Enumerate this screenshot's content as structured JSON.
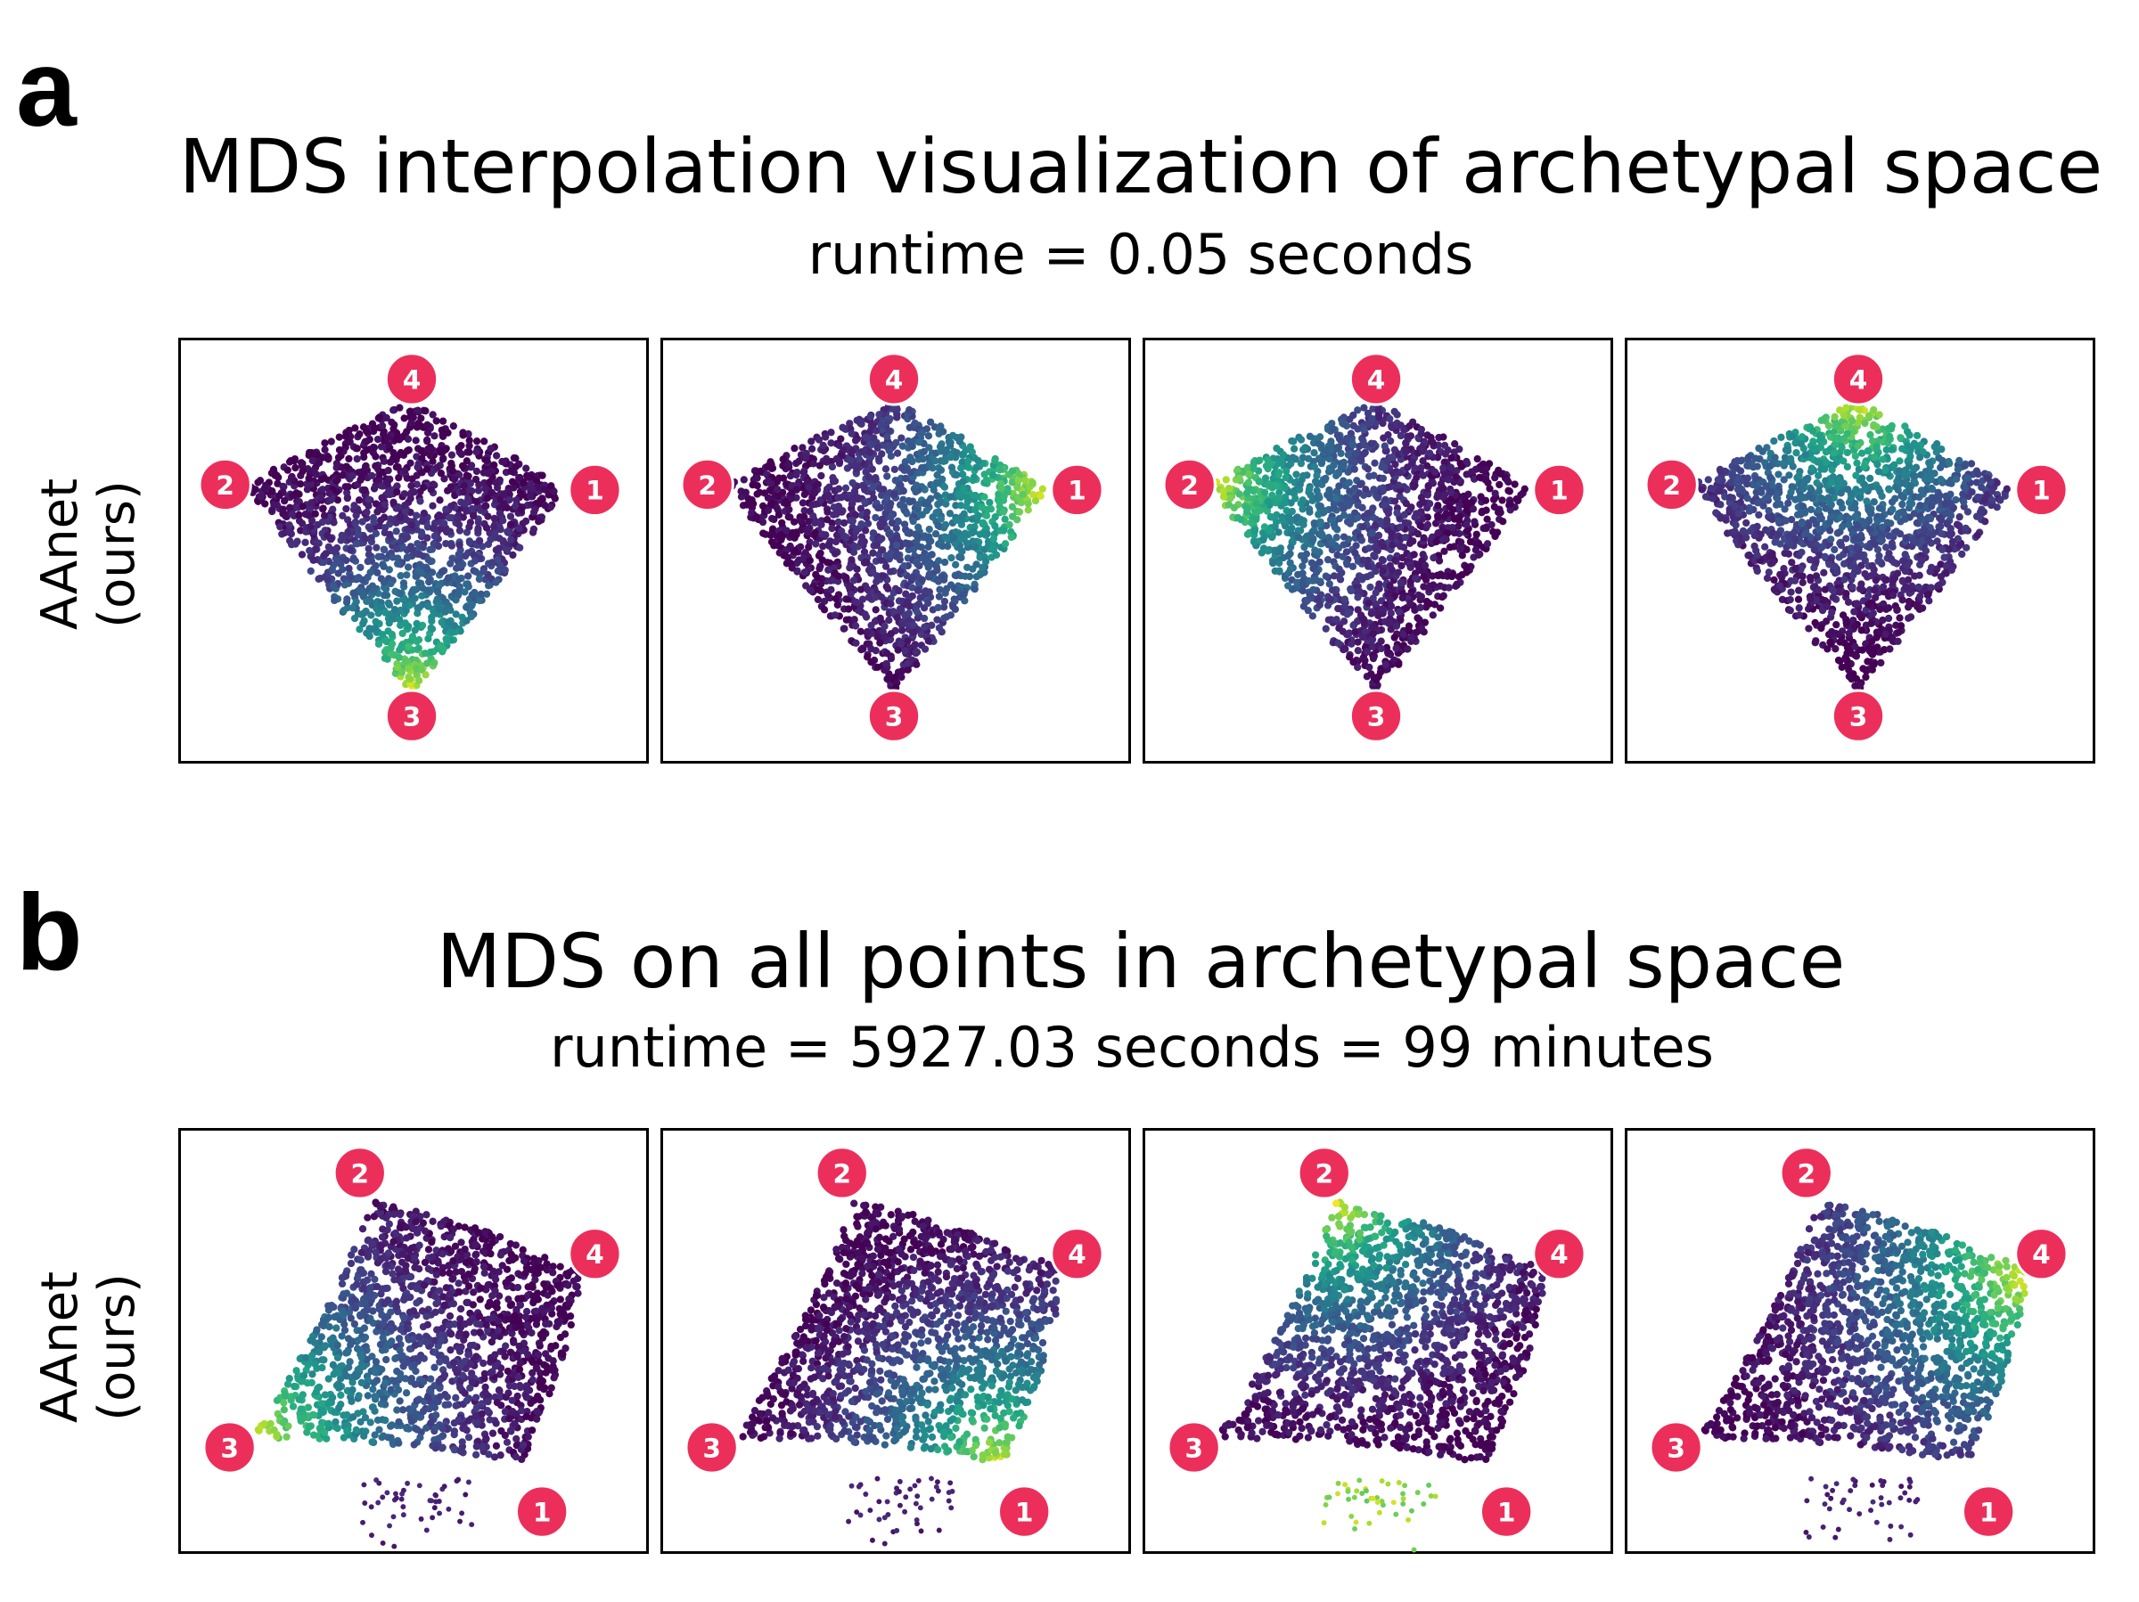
{
  "panels": [
    {
      "letter": "a",
      "title": "MDS interpolation visualization of archetypal space",
      "subtitle": "runtime = 0.05 seconds",
      "ylabel_line1": "AAnet",
      "ylabel_line2": "(ours)"
    },
    {
      "letter": "b",
      "title": "MDS on all points in archetypal space",
      "subtitle": "runtime = 5927.03 seconds = 99 minutes",
      "ylabel_line1": "AAnet",
      "ylabel_line2": "(ours)"
    }
  ],
  "colors": {
    "archetype_marker": "#ec2f5a",
    "colormap": "viridis",
    "low": "#3b1f66",
    "high": "#f2e51d"
  },
  "chart_data": [
    {
      "type": "scatter",
      "panel": "a",
      "colormap": "viridis",
      "color_by": [
        "archetype 3",
        "archetype 1",
        "archetype 2",
        "archetype 4"
      ],
      "archetype_labels": [
        "1",
        "2",
        "3",
        "4"
      ],
      "archetype_positions": "diamond: 4 top, 2 left, 1 right, 3 bottom",
      "axes": "no ticks, no grid",
      "subplots": 4
    },
    {
      "type": "scatter",
      "panel": "b",
      "colormap": "viridis",
      "color_by": [
        "archetype 3",
        "archetype 1",
        "archetype 2",
        "archetype 4"
      ],
      "archetype_labels": [
        "1",
        "2",
        "3",
        "4"
      ],
      "archetype_positions": "skewed quadrilateral: 2 top-left, 4 upper-right, 3 lower-left, 1 bottom-right",
      "axes": "no ticks, no grid",
      "subplots": 4
    }
  ]
}
